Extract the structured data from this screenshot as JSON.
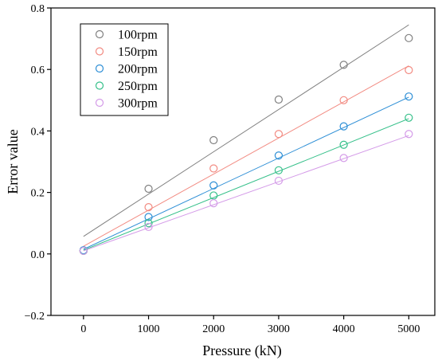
{
  "chart_data": {
    "type": "scatter",
    "xlabel": "Pressure (kN)",
    "ylabel": "Error value",
    "xlim": [
      -500,
      5400
    ],
    "ylim": [
      -0.2,
      0.8
    ],
    "xticks": [
      0,
      1000,
      2000,
      3000,
      4000,
      5000
    ],
    "yticks": [
      -0.2,
      0.0,
      0.2,
      0.4,
      0.6,
      0.8
    ],
    "xtick_labels": [
      "0",
      "1000",
      "2000",
      "3000",
      "4000",
      "5000"
    ],
    "ytick_labels": [
      "−0.2",
      "0.0",
      "0.2",
      "0.4",
      "0.6",
      "0.8"
    ],
    "legend_position": "top-left",
    "x": [
      0,
      1000,
      2000,
      3000,
      4000,
      5000
    ],
    "series": [
      {
        "name": "100rpm",
        "color": "#808080",
        "values": [
          0.01,
          0.212,
          0.37,
          0.502,
          0.615,
          0.702
        ],
        "fit": [
          0.057,
          0.745
        ]
      },
      {
        "name": "150rpm",
        "color": "#f28b82",
        "values": [
          0.01,
          0.152,
          0.278,
          0.39,
          0.5,
          0.598
        ],
        "fit": [
          0.025,
          0.612
        ]
      },
      {
        "name": "200rpm",
        "color": "#2e8fd6",
        "values": [
          0.012,
          0.12,
          0.223,
          0.32,
          0.415,
          0.512
        ],
        "fit": [
          0.015,
          0.51
        ]
      },
      {
        "name": "250rpm",
        "color": "#36c08a",
        "values": [
          0.01,
          0.1,
          0.19,
          0.272,
          0.355,
          0.443
        ],
        "fit": [
          0.012,
          0.44
        ]
      },
      {
        "name": "300rpm",
        "color": "#d49be8",
        "values": [
          0.01,
          0.088,
          0.165,
          0.238,
          0.312,
          0.39
        ],
        "fit": [
          0.01,
          0.385
        ]
      }
    ]
  }
}
